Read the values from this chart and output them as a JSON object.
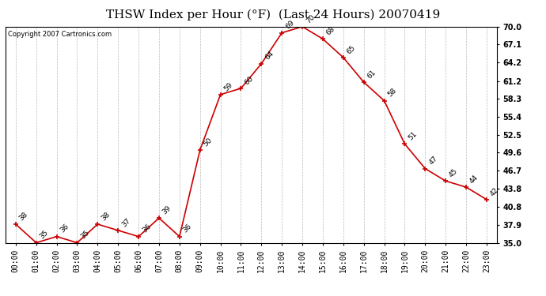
{
  "title": "THSW Index per Hour (°F)  (Last 24 Hours) 20070419",
  "copyright": "Copyright 2007 Cartronics.com",
  "hours": [
    "00:00",
    "01:00",
    "02:00",
    "03:00",
    "04:00",
    "05:00",
    "06:00",
    "07:00",
    "08:00",
    "09:00",
    "10:00",
    "11:00",
    "12:00",
    "13:00",
    "14:00",
    "15:00",
    "16:00",
    "17:00",
    "18:00",
    "19:00",
    "20:00",
    "21:00",
    "22:00",
    "23:00"
  ],
  "values": [
    38,
    35,
    36,
    35,
    38,
    37,
    36,
    39,
    36,
    50,
    59,
    60,
    64,
    69,
    70,
    68,
    65,
    61,
    58,
    51,
    47,
    45,
    44,
    42
  ],
  "line_color": "#cc0000",
  "marker_color": "#cc0000",
  "bg_color": "#ffffff",
  "outer_bg": "#c8c8c8",
  "grid_color": "#aaaaaa",
  "ylim": [
    35.0,
    70.0
  ],
  "yticks": [
    35.0,
    37.9,
    40.8,
    43.8,
    46.7,
    49.6,
    52.5,
    55.4,
    58.3,
    61.2,
    64.2,
    67.1,
    70.0
  ],
  "title_fontsize": 11,
  "label_fontsize": 7,
  "annot_fontsize": 6.5,
  "copyright_fontsize": 6
}
